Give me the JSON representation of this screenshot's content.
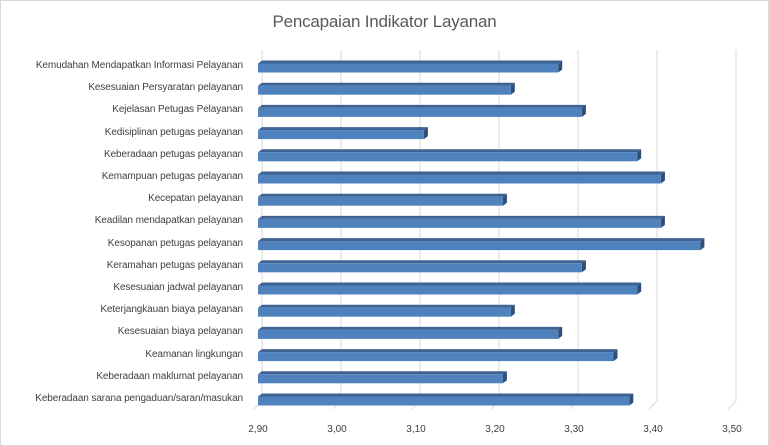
{
  "chart_data": {
    "type": "bar",
    "orientation": "horizontal",
    "style": "3d-clustered-bar",
    "title": "Pencapaian Indikator Layanan",
    "xlabel": "",
    "ylabel": "",
    "xlim": [
      2.9,
      3.5
    ],
    "x_ticks": [
      "2,90",
      "3,00",
      "3,10",
      "3,20",
      "3,30",
      "3,40",
      "3,50"
    ],
    "grid": true,
    "legend": null,
    "bar_color": "#4f81bd",
    "categories": [
      "Kemudahan Mendapatkan Informasi Pelayanan",
      "Kesesuaian Persyaratan pelayanan",
      "Kejelasan Petugas Pelayanan",
      "Kedisiplinan petugas pelayanan",
      "Keberadaan petugas pelayanan",
      "Kemampuan petugas pelayanan",
      "Kecepatan pelayanan",
      "Keadilan mendapatkan pelayanan",
      "Kesopanan petugas pelayanan",
      "Keramahan petugas pelayanan",
      "Kesesuaian jadwal pelayanan",
      "Keterjangkauan biaya pelayanan",
      "Kesesuaian biaya pelayanan",
      "Keamanan lingkungan",
      "Keberadaan maklumat pelayanan",
      "Keberadaan sarana pengaduan/saran/masukan"
    ],
    "values": [
      3.28,
      3.22,
      3.31,
      3.11,
      3.38,
      3.41,
      3.21,
      3.41,
      3.46,
      3.31,
      3.38,
      3.22,
      3.28,
      3.35,
      3.21,
      3.37
    ]
  }
}
